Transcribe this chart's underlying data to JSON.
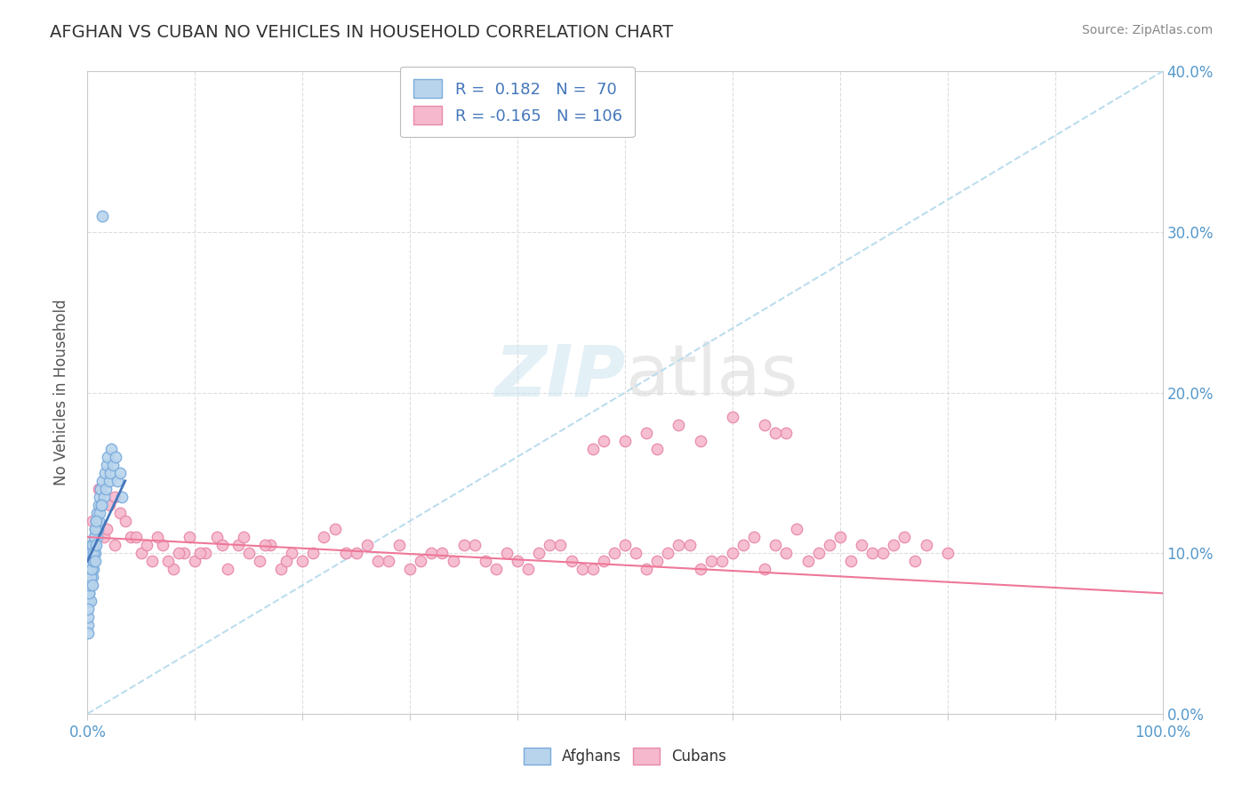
{
  "title": "AFGHAN VS CUBAN NO VEHICLES IN HOUSEHOLD CORRELATION CHART",
  "source": "Source: ZipAtlas.com",
  "ylabel": "No Vehicles in Household",
  "watermark_zip": "ZIP",
  "watermark_atlas": "atlas",
  "afghan_R": 0.182,
  "afghan_N": 70,
  "cuban_R": -0.165,
  "cuban_N": 106,
  "afghan_color": "#b8d4ec",
  "cuban_color": "#f5b8cc",
  "afghan_edge_color": "#7aabdc",
  "cuban_edge_color": "#e88aaa",
  "afghan_line_color": "#4477bb",
  "cuban_line_color": "#ee7799",
  "ref_line_color": "#bbddee",
  "tick_color": "#5599cc",
  "label_color": "#555555",
  "title_color": "#333333",
  "source_color": "#888888",
  "legend_text_color": "#4477bb",
  "grid_color": "#dddddd",
  "background_color": "#ffffff",
  "xlim": [
    0,
    100
  ],
  "ylim": [
    0,
    40
  ],
  "afghan_points_x": [
    0.05,
    0.08,
    0.1,
    0.12,
    0.15,
    0.18,
    0.2,
    0.22,
    0.25,
    0.28,
    0.3,
    0.32,
    0.35,
    0.38,
    0.4,
    0.42,
    0.45,
    0.48,
    0.5,
    0.52,
    0.55,
    0.58,
    0.6,
    0.65,
    0.7,
    0.75,
    0.8,
    0.85,
    0.9,
    0.95,
    1.0,
    1.05,
    1.1,
    1.15,
    1.2,
    1.3,
    1.4,
    1.5,
    1.6,
    1.7,
    1.8,
    1.9,
    2.0,
    2.1,
    2.2,
    2.4,
    2.6,
    2.8,
    3.0,
    3.2,
    0.03,
    0.06,
    0.09,
    0.13,
    0.17,
    0.23,
    0.27,
    0.33,
    0.37,
    0.43,
    0.47,
    0.53,
    0.57,
    0.63,
    0.67,
    0.73,
    0.77,
    0.83,
    1.25,
    1.35
  ],
  "afghan_points_y": [
    5.5,
    6.0,
    7.0,
    8.0,
    7.5,
    8.5,
    9.0,
    8.0,
    9.5,
    7.0,
    8.5,
    9.0,
    10.0,
    9.5,
    8.0,
    10.5,
    9.0,
    10.0,
    8.5,
    9.5,
    10.0,
    9.0,
    11.0,
    10.5,
    11.5,
    10.0,
    12.0,
    11.0,
    12.5,
    11.5,
    12.0,
    13.0,
    12.5,
    13.5,
    14.0,
    13.0,
    14.5,
    13.5,
    15.0,
    14.0,
    15.5,
    16.0,
    14.5,
    15.0,
    16.5,
    15.5,
    16.0,
    14.5,
    15.0,
    13.5,
    5.0,
    6.5,
    7.5,
    8.0,
    9.0,
    9.5,
    8.5,
    10.0,
    9.0,
    10.5,
    8.0,
    9.5,
    10.0,
    11.0,
    9.5,
    11.5,
    10.5,
    12.0,
    13.0,
    31.0
  ],
  "cuban_points_x": [
    0.5,
    1.0,
    1.5,
    2.0,
    2.5,
    3.0,
    4.0,
    5.0,
    6.0,
    7.0,
    8.0,
    9.0,
    10.0,
    11.0,
    12.0,
    13.0,
    14.0,
    15.0,
    16.0,
    17.0,
    18.0,
    19.0,
    20.0,
    22.0,
    24.0,
    26.0,
    28.0,
    30.0,
    32.0,
    34.0,
    36.0,
    38.0,
    40.0,
    42.0,
    44.0,
    46.0,
    48.0,
    50.0,
    52.0,
    54.0,
    56.0,
    58.0,
    60.0,
    62.0,
    64.0,
    66.0,
    68.0,
    70.0,
    72.0,
    74.0,
    76.0,
    78.0,
    80.0,
    1.2,
    1.8,
    2.5,
    3.5,
    4.5,
    5.5,
    6.5,
    7.5,
    8.5,
    9.5,
    10.5,
    12.5,
    14.5,
    16.5,
    18.5,
    21.0,
    23.0,
    25.0,
    27.0,
    29.0,
    31.0,
    33.0,
    35.0,
    37.0,
    39.0,
    41.0,
    43.0,
    45.0,
    47.0,
    49.0,
    51.0,
    53.0,
    55.0,
    57.0,
    59.0,
    61.0,
    63.0,
    65.0,
    67.0,
    69.0,
    71.0,
    73.0,
    75.0,
    77.0,
    50.0,
    55.0,
    60.0,
    65.0,
    47.0,
    48.0,
    52.0,
    53.0,
    57.0,
    63.0,
    64.0
  ],
  "cuban_points_y": [
    12.0,
    14.0,
    11.0,
    13.0,
    10.5,
    12.5,
    11.0,
    10.0,
    9.5,
    10.5,
    9.0,
    10.0,
    9.5,
    10.0,
    11.0,
    9.0,
    10.5,
    10.0,
    9.5,
    10.5,
    9.0,
    10.0,
    9.5,
    11.0,
    10.0,
    10.5,
    9.5,
    9.0,
    10.0,
    9.5,
    10.5,
    9.0,
    9.5,
    10.0,
    10.5,
    9.0,
    9.5,
    10.5,
    9.0,
    10.0,
    10.5,
    9.5,
    10.0,
    11.0,
    10.5,
    11.5,
    10.0,
    11.0,
    10.5,
    10.0,
    11.0,
    10.5,
    10.0,
    14.0,
    11.5,
    13.5,
    12.0,
    11.0,
    10.5,
    11.0,
    9.5,
    10.0,
    11.0,
    10.0,
    10.5,
    11.0,
    10.5,
    9.5,
    10.0,
    11.5,
    10.0,
    9.5,
    10.5,
    9.5,
    10.0,
    10.5,
    9.5,
    10.0,
    9.0,
    10.5,
    9.5,
    9.0,
    10.0,
    10.0,
    9.5,
    10.5,
    9.0,
    9.5,
    10.5,
    9.0,
    10.0,
    9.5,
    10.5,
    9.5,
    10.0,
    10.5,
    9.5,
    17.0,
    18.0,
    18.5,
    17.5,
    16.5,
    17.0,
    17.5,
    16.5,
    17.0,
    18.0,
    17.5
  ]
}
